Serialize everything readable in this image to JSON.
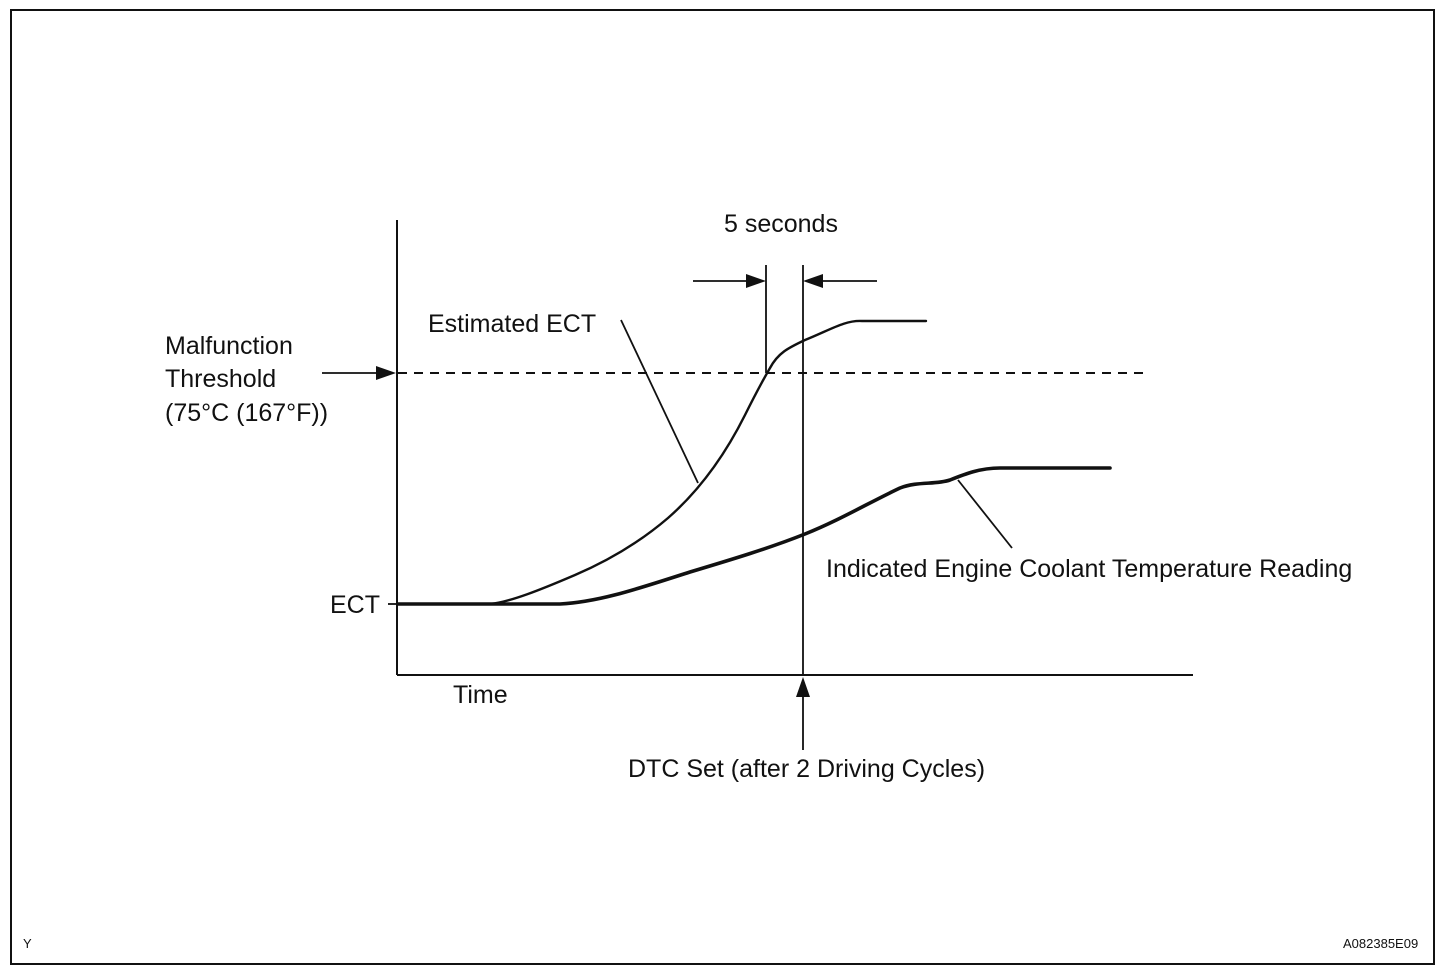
{
  "labels": {
    "interval": "5 seconds",
    "estimated": "Estimated ECT",
    "threshold_line1": "Malfunction",
    "threshold_line2": "Threshold",
    "threshold_line3": "(75°C (167°F))",
    "ect": "ECT",
    "time": "Time",
    "indicated": "Indicated Engine Coolant Temperature Reading",
    "dtc": "DTC Set (after 2 Driving Cycles)",
    "corner_mark": "Y",
    "figure_code": "A082385E09"
  }
}
